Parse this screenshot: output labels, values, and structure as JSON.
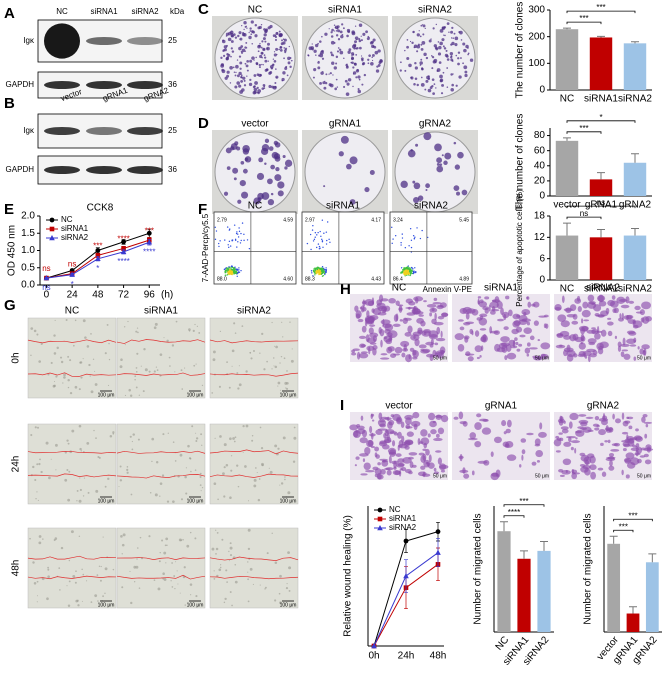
{
  "panels": [
    "A",
    "B",
    "C",
    "D",
    "E",
    "F",
    "G",
    "H",
    "I"
  ],
  "blot_A": {
    "lanes": [
      "NC",
      "siRNA1",
      "siRNA2"
    ],
    "unit": "kDa",
    "rows": [
      {
        "name": "Igκ",
        "kda": "25"
      },
      {
        "name": "GAPDH",
        "kda": "36"
      }
    ]
  },
  "blot_B": {
    "lanes": [
      "vector",
      "gRNA1",
      "gRNA2"
    ],
    "rows": [
      {
        "name": "Igκ",
        "kda": "25"
      },
      {
        "name": "GAPDH",
        "kda": "36"
      }
    ]
  },
  "colony_C": {
    "groups": [
      "NC",
      "siRNA1",
      "siRNA2"
    ]
  },
  "colony_D": {
    "groups": [
      "vector",
      "gRNA1",
      "gRNA2"
    ]
  },
  "flow_F": {
    "y_label": "7-AAD-Percp/cy5.5",
    "x_label": "Annexin V-PE",
    "groups": [
      {
        "name": "NC",
        "quadrants": [
          "2.79",
          "4.59",
          "88.0",
          "4.60"
        ]
      },
      {
        "name": "siRNA1",
        "quadrants": [
          "2.97",
          "4.17",
          "88.3",
          "4.43"
        ]
      },
      {
        "name": "siRNA2",
        "quadrants": [
          "3.24",
          "5.45",
          "86.4",
          "4.89"
        ]
      }
    ]
  },
  "wound_G": {
    "groups": [
      "NC",
      "siRNA1",
      "siRNA2"
    ],
    "times": [
      "0h",
      "24h",
      "48h"
    ],
    "scale": "100 μm"
  },
  "transwell_H": {
    "groups": [
      "NC",
      "siRNA1",
      "siRNA2"
    ],
    "scale": "50 μm"
  },
  "transwell_I": {
    "groups": [
      "vector",
      "gRNA1",
      "gRNA2"
    ],
    "scale": "50 μm"
  },
  "chart_data": [
    {
      "type": "bar",
      "y_label": "The number of clones",
      "categories": [
        "NC",
        "siRNA1",
        "siRNA2"
      ],
      "values": [
        228,
        197,
        175
      ],
      "errors": [
        4,
        4,
        6
      ],
      "colors": [
        "#a6a6a6",
        "#c00000",
        "#9dc3e6"
      ],
      "ylim": [
        0,
        300
      ],
      "yticks": [
        0,
        100,
        200,
        300
      ],
      "annotations": [
        "***",
        "***"
      ]
    },
    {
      "type": "bar",
      "y_label": "The number of clones",
      "categories": [
        "vector",
        "gRNA1",
        "gRNA2"
      ],
      "values": [
        73,
        22,
        44
      ],
      "errors": [
        4,
        9,
        12
      ],
      "colors": [
        "#a6a6a6",
        "#c00000",
        "#9dc3e6"
      ],
      "ylim": [
        0,
        90
      ],
      "yticks": [
        0,
        20,
        40,
        60,
        80
      ],
      "annotations": [
        "***",
        "*"
      ]
    },
    {
      "type": "line",
      "title": "CCK8",
      "y_label": "OD 450 nm",
      "x_label": "(h)",
      "x": [
        0,
        24,
        48,
        72,
        96
      ],
      "xlim": [
        -6,
        106
      ],
      "xticks": [
        0,
        24,
        48,
        72,
        96
      ],
      "ylim": [
        0,
        2
      ],
      "yticks": [
        {
          "value": 0,
          "label": "0.0"
        },
        {
          "value": 0.5,
          "label": "0.5"
        },
        {
          "value": 1,
          "label": "1.0"
        },
        {
          "value": 1.5,
          "label": "1.5"
        },
        {
          "value": 2,
          "label": "2.0"
        }
      ],
      "series": [
        {
          "name": "NC",
          "color": "#000000",
          "marker": "circle",
          "values": [
            0.2,
            0.42,
            1.0,
            1.25,
            1.5
          ],
          "errors": [
            0.02,
            0.04,
            0.08,
            0.07,
            0.12
          ]
        },
        {
          "name": "siRNA1",
          "color": "#c00000",
          "marker": "square",
          "values": [
            0.2,
            0.33,
            0.86,
            1.06,
            1.3
          ],
          "errors": [
            0.02,
            0.04,
            0.06,
            0.06,
            0.08
          ],
          "marks": [
            "ns",
            "ns",
            "***",
            "****",
            "***"
          ]
        },
        {
          "name": "siRNA2",
          "color": "#3a3ad0",
          "marker": "triangle",
          "values": [
            0.2,
            0.3,
            0.76,
            0.96,
            1.24
          ],
          "errors": [
            0.02,
            0.04,
            0.06,
            0.06,
            0.08
          ],
          "marks": [
            "ns",
            "*",
            "*",
            "****",
            "****"
          ]
        }
      ]
    },
    {
      "type": "bar",
      "y_label": "Percentage of apoptotic cells (%)",
      "categories": [
        "NC",
        "siRNA1",
        "siRNA2"
      ],
      "values": [
        12.5,
        12,
        12.5
      ],
      "errors": [
        3.5,
        2.2,
        2
      ],
      "colors": [
        "#a6a6a6",
        "#c00000",
        "#9dc3e6"
      ],
      "ylim": [
        0,
        18
      ],
      "yticks": [
        0,
        6,
        12,
        18
      ],
      "annotations": [
        "ns",
        "ns"
      ]
    },
    {
      "type": "line",
      "y_label": "Relative wound healing (%)",
      "categories": [
        "0h",
        "24h",
        "48h"
      ],
      "ylim": [
        0,
        60
      ],
      "series": [
        {
          "name": "NC",
          "color": "#000000",
          "marker": "circle",
          "values": [
            0,
            45,
            49
          ],
          "errors": [
            0,
            5,
            4
          ]
        },
        {
          "name": "siRNA1",
          "color": "#c00000",
          "marker": "square",
          "values": [
            0,
            25,
            35
          ],
          "errors": [
            0,
            9,
            7
          ]
        },
        {
          "name": "siRNA2",
          "color": "#3a3ad0",
          "marker": "triangle",
          "values": [
            0,
            30,
            40
          ],
          "errors": [
            0,
            7,
            6
          ]
        }
      ]
    },
    {
      "type": "bar",
      "y_label": "Number of migrated cells",
      "categories": [
        "NC",
        "siRNA1",
        "siRNA2"
      ],
      "values": [
        128,
        93,
        103
      ],
      "errors": [
        12,
        10,
        12
      ],
      "colors": [
        "#a6a6a6",
        "#c00000",
        "#9dc3e6"
      ],
      "ylim": [
        0,
        160
      ],
      "annotations": [
        "****",
        "***"
      ]
    },
    {
      "type": "bar",
      "y_label": "Number of migrated cells",
      "categories": [
        "vector",
        "gRNA1",
        "gRNA2"
      ],
      "values": [
        105,
        22,
        83
      ],
      "errors": [
        9,
        8,
        10
      ],
      "colors": [
        "#a6a6a6",
        "#c00000",
        "#9dc3e6"
      ],
      "ylim": [
        0,
        150
      ],
      "annotations": [
        "***",
        "***"
      ]
    }
  ]
}
